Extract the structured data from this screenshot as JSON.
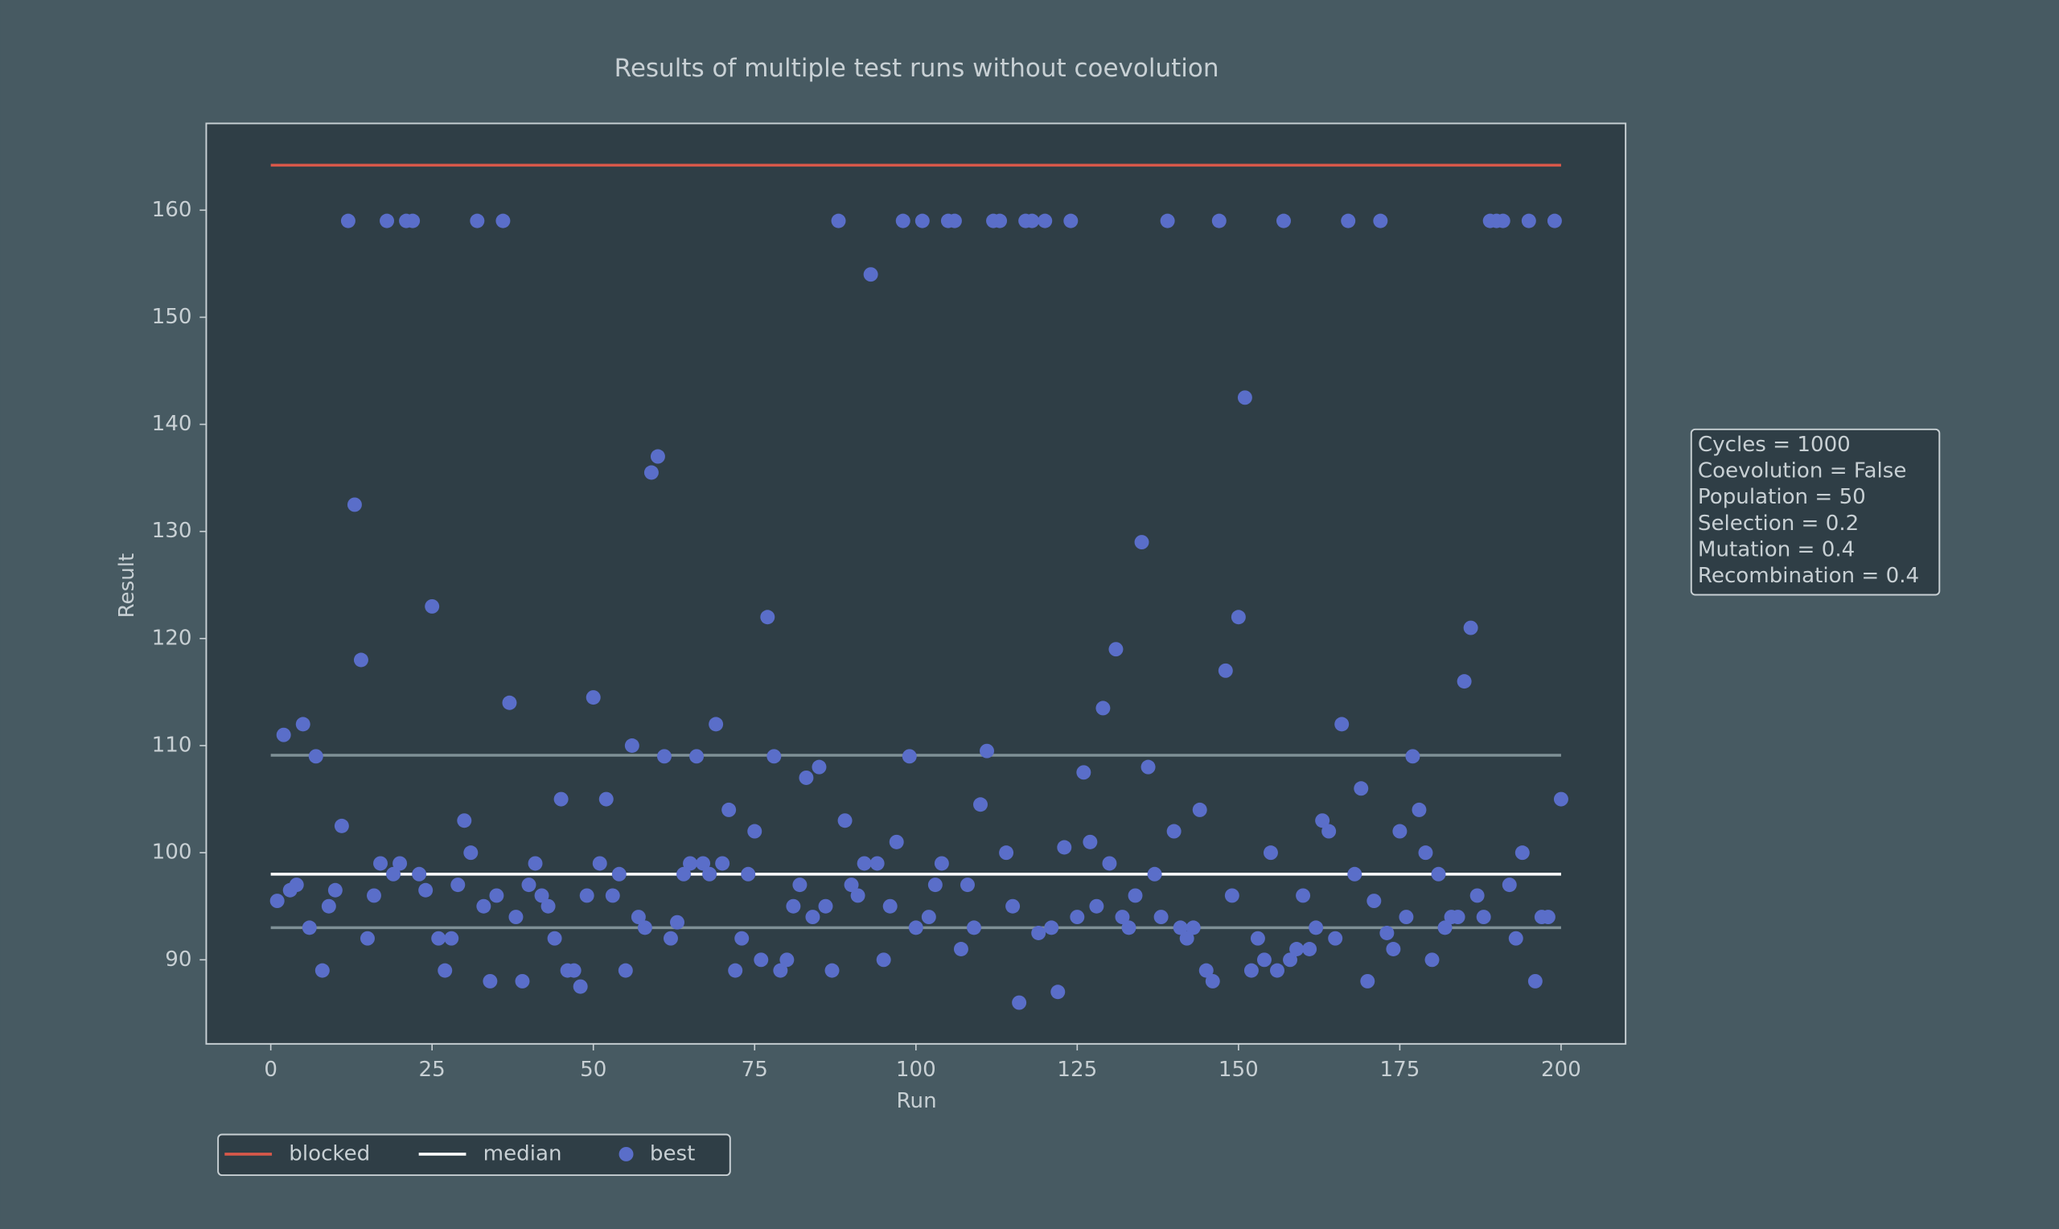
{
  "chart_data": {
    "type": "scatter",
    "title": "Results of multiple test runs without coevolution",
    "x_label": "Run",
    "y_label": "Result",
    "xlim": [
      -10,
      210
    ],
    "ylim": [
      82.15,
      168.1
    ],
    "xticks": [
      0,
      25,
      50,
      75,
      100,
      125,
      150,
      175,
      200
    ],
    "yticks": [
      90,
      100,
      110,
      120,
      130,
      140,
      150,
      160
    ],
    "legend": "bottom-left",
    "annotation": [
      "Cycles = 1000",
      "Coevolution = False",
      "Population = 50",
      "Selection = 0.2",
      "Mutation = 0.4",
      "Recombination = 0.4"
    ],
    "series": [
      {
        "name": "blocked",
        "type": "line",
        "color": "#d9584a",
        "x": [
          0,
          200
        ],
        "values": [
          164.2,
          164.2
        ]
      },
      {
        "name": "median",
        "type": "line",
        "color": "#ffffff",
        "x": [
          0,
          200
        ],
        "values": [
          98,
          98
        ]
      },
      {
        "type": "line",
        "color": "#7f9096",
        "x": [
          0,
          200
        ],
        "values": [
          109.1,
          109.1
        ]
      },
      {
        "type": "line",
        "color": "#7f9096",
        "x": [
          0,
          200
        ],
        "values": [
          93,
          93
        ]
      },
      {
        "name": "best",
        "type": "scatter",
        "color": "#5a6ec9",
        "x": [
          1,
          2,
          3,
          4,
          5,
          6,
          7,
          8,
          9,
          10,
          11,
          12,
          13,
          14,
          15,
          16,
          17,
          18,
          19,
          20,
          21,
          22,
          23,
          24,
          25,
          26,
          27,
          28,
          29,
          30,
          31,
          32,
          33,
          34,
          35,
          36,
          37,
          38,
          39,
          40,
          41,
          42,
          43,
          44,
          45,
          46,
          47,
          48,
          49,
          50,
          51,
          52,
          53,
          54,
          55,
          56,
          57,
          58,
          59,
          60,
          61,
          62,
          63,
          64,
          65,
          66,
          67,
          68,
          69,
          70,
          71,
          72,
          73,
          74,
          75,
          76,
          77,
          78,
          79,
          80,
          81,
          82,
          83,
          84,
          85,
          86,
          87,
          88,
          89,
          90,
          91,
          92,
          93,
          94,
          95,
          96,
          97,
          98,
          99,
          100,
          101,
          102,
          103,
          104,
          105,
          106,
          107,
          108,
          109,
          110,
          111,
          112,
          113,
          114,
          115,
          116,
          117,
          118,
          119,
          120,
          121,
          122,
          123,
          124,
          125,
          126,
          127,
          128,
          129,
          130,
          131,
          132,
          133,
          134,
          135,
          136,
          137,
          138,
          139,
          140,
          141,
          142,
          143,
          144,
          145,
          146,
          147,
          148,
          149,
          150,
          151,
          152,
          153,
          154,
          155,
          156,
          157,
          158,
          159,
          160,
          161,
          162,
          163,
          164,
          165,
          166,
          167,
          168,
          169,
          170,
          171,
          172,
          173,
          174,
          175,
          176,
          177,
          178,
          179,
          180,
          181,
          182,
          183,
          184,
          185,
          186,
          187,
          188,
          189,
          190,
          191,
          192,
          193,
          194,
          195,
          196,
          197,
          198,
          199,
          200
        ],
        "values": [
          95.5,
          111,
          96.5,
          97,
          112,
          93,
          109,
          89,
          95,
          96.5,
          102.5,
          159,
          132.5,
          118,
          92,
          96,
          99,
          159,
          98,
          99,
          159,
          159,
          98,
          96.5,
          123,
          92,
          89,
          92,
          97,
          103,
          100,
          159,
          95,
          88,
          96,
          159,
          114,
          94,
          88,
          97,
          99,
          96,
          95,
          92,
          105,
          89,
          89,
          87.5,
          96,
          114.5,
          99,
          105,
          96,
          98,
          89,
          110,
          94,
          93,
          135.5,
          137,
          109,
          92,
          93.5,
          98,
          99,
          109,
          99,
          98,
          112,
          99,
          104,
          89,
          92,
          98,
          102,
          90,
          122,
          109,
          89,
          90,
          95,
          97,
          107,
          94,
          108,
          95,
          89,
          159,
          103,
          97,
          96,
          99,
          154,
          99,
          90,
          95,
          101,
          159,
          109,
          93,
          159,
          94,
          97,
          99,
          159,
          159,
          91,
          97,
          93,
          104.5,
          109.5,
          159,
          159,
          100,
          95,
          86,
          159,
          159,
          92.5,
          159,
          93,
          87,
          100.5,
          159,
          94,
          107.5,
          101,
          95,
          113.5,
          99,
          119,
          94,
          93,
          96,
          129,
          108,
          98,
          94,
          159,
          102,
          93,
          92,
          93,
          104,
          89,
          88,
          159,
          117,
          96,
          122,
          142.5,
          89,
          92,
          90,
          100,
          89,
          159,
          90,
          91,
          96,
          91,
          93,
          103,
          102,
          92,
          112,
          159,
          98,
          106,
          88,
          95.5,
          159,
          92.5,
          91,
          102,
          94,
          109,
          104,
          100,
          90,
          98,
          93,
          94,
          94,
          116,
          121,
          96,
          94,
          159,
          159,
          159,
          97,
          92,
          100,
          159,
          88,
          94,
          94,
          159,
          105
        ]
      }
    ]
  }
}
